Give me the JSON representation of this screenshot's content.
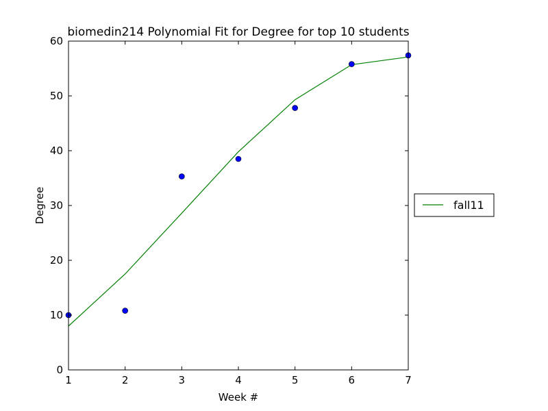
{
  "chart_data": {
    "type": "line",
    "title": "biomedin214 Polynomial Fit for Degree for top 10 students",
    "xlabel": "Week #",
    "ylabel": "Degree",
    "xlim": [
      1,
      7
    ],
    "ylim": [
      0,
      60
    ],
    "xticks": [
      1,
      2,
      3,
      4,
      5,
      6,
      7
    ],
    "yticks": [
      0,
      10,
      20,
      30,
      40,
      50,
      60
    ],
    "grid": false,
    "legend_position": "outside-right",
    "series": [
      {
        "name": "fall11",
        "kind": "line",
        "color": "#008000",
        "x": [
          1,
          2,
          3,
          4,
          5,
          6,
          7
        ],
        "y": [
          8.0,
          17.5,
          28.6,
          39.8,
          49.3,
          55.7,
          57.1
        ]
      },
      {
        "kind": "scatter",
        "color": "#0000ff",
        "x": [
          1,
          2,
          3,
          4,
          5,
          6,
          7
        ],
        "y": [
          10.0,
          10.8,
          35.3,
          38.5,
          47.8,
          55.8,
          57.4
        ]
      }
    ]
  }
}
